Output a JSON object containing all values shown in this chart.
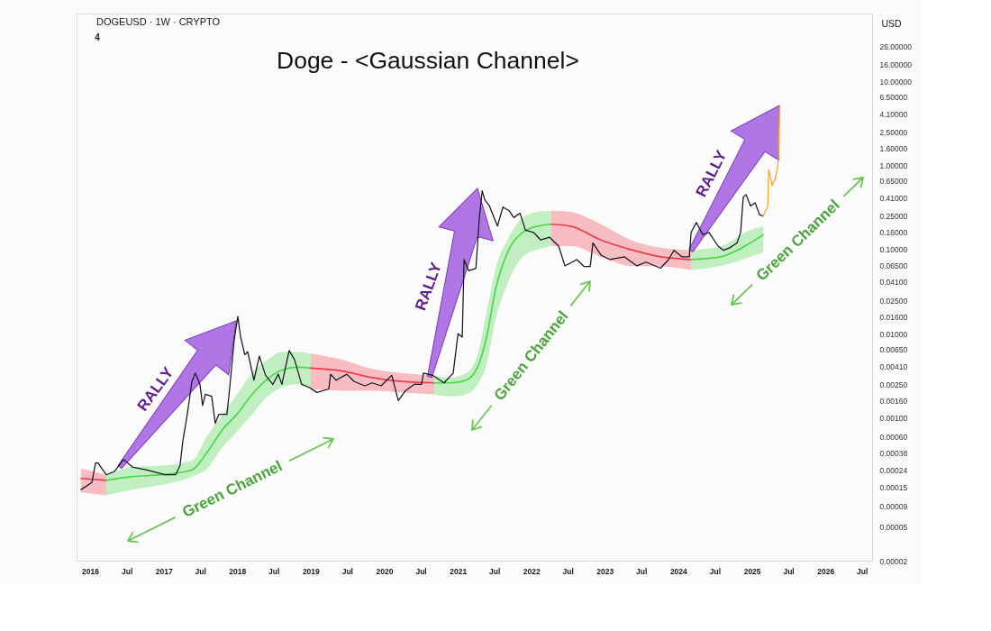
{
  "chart_data": {
    "type": "line",
    "title": "Doge - <Gaussian Channel>",
    "ylabel": "USD",
    "annotations": [
      "RALLY",
      "RALLY",
      "RALLY",
      "Green Channel",
      "Green Channel",
      "Green Channel",
      "DOGEUSD · 1W · CRYPTO",
      "4"
    ],
    "xlim": [
      "2015-10-26",
      "2026-08-21"
    ],
    "xticks": [
      {
        "value": "2016-01-01",
        "label": "2016"
      },
      {
        "value": "2016-07-01",
        "label": "Jul"
      },
      {
        "value": "2017-01-01",
        "label": "2017"
      },
      {
        "value": "2017-07-01",
        "label": "Jul"
      },
      {
        "value": "2018-01-01",
        "label": "2018"
      },
      {
        "value": "2018-07-01",
        "label": "Jul"
      },
      {
        "value": "2019-01-01",
        "label": "2019"
      },
      {
        "value": "2019-07-01",
        "label": "Jul"
      },
      {
        "value": "2020-01-01",
        "label": "2020"
      },
      {
        "value": "2020-07-01",
        "label": "Jul"
      },
      {
        "value": "2021-01-01",
        "label": "2021"
      },
      {
        "value": "2021-07-01",
        "label": "Jul"
      },
      {
        "value": "2022-01-01",
        "label": "2022"
      },
      {
        "value": "2022-07-01",
        "label": "Jul"
      },
      {
        "value": "2023-01-01",
        "label": "2023"
      },
      {
        "value": "2023-07-01",
        "label": "Jul"
      },
      {
        "value": "2024-01-01",
        "label": "2024"
      },
      {
        "value": "2024-07-01",
        "label": "Jul"
      },
      {
        "value": "2025-01-01",
        "label": "2025"
      },
      {
        "value": "2025-07-01",
        "label": "Jul"
      },
      {
        "value": "2026-01-01",
        "label": "2026"
      },
      {
        "value": "2026-07-01",
        "label": "Jul"
      }
    ],
    "ylim": [
      2e-05,
      64
    ],
    "yticks": [
      {
        "value": 2e-05,
        "label": "0.00002"
      },
      {
        "value": 5e-05,
        "label": "0.00005"
      },
      {
        "value": 9e-05,
        "label": "0.00009"
      },
      {
        "value": 0.00015,
        "label": "0.00015"
      },
      {
        "value": 0.00024,
        "label": "0.00024"
      },
      {
        "value": 0.00038,
        "label": "0.00038"
      },
      {
        "value": 0.0006,
        "label": "0.00060"
      },
      {
        "value": 0.001,
        "label": "0.00100"
      },
      {
        "value": 0.0016,
        "label": "0.00160"
      },
      {
        "value": 0.0025,
        "label": "0.00250"
      },
      {
        "value": 0.0041,
        "label": "0.00410"
      },
      {
        "value": 0.0065,
        "label": "0.00650"
      },
      {
        "value": 0.01,
        "label": "0.01000"
      },
      {
        "value": 0.016,
        "label": "0.01600"
      },
      {
        "value": 0.025,
        "label": "0.02500"
      },
      {
        "value": 0.041,
        "label": "0.04100"
      },
      {
        "value": 0.065,
        "label": "0.06500"
      },
      {
        "value": 0.1,
        "label": "0.10000"
      },
      {
        "value": 0.16,
        "label": "0.16000"
      },
      {
        "value": 0.25,
        "label": "0.25000"
      },
      {
        "value": 0.41,
        "label": "0.41000"
      },
      {
        "value": 0.65,
        "label": "0.65000"
      },
      {
        "value": 1,
        "label": "1.00000"
      },
      {
        "value": 1.6,
        "label": "1.60000"
      },
      {
        "value": 2.5,
        "label": "2.50000"
      },
      {
        "value": 4.1,
        "label": "4.10000"
      },
      {
        "value": 6.5,
        "label": "6.50000"
      },
      {
        "value": 10,
        "label": "10.00000"
      },
      {
        "value": 16,
        "label": "16.00000"
      },
      {
        "value": 26,
        "label": "26.00000"
      }
    ],
    "log": true,
    "grid": false,
    "series": [
      {
        "color": "#ef3b4c",
        "x": [
          "2015-11-17",
          "2016-03-22"
        ],
        "values": [
          0.00019,
          0.00018
        ],
        "lower": [
          0.00013,
          0.00012
        ],
        "upper": [
          0.00025,
          0.00021
        ]
      },
      {
        "color": "#4cd84c",
        "x": [
          "2016-03-22",
          "2016-07-29",
          "2016-12-24",
          "2017-05-21",
          "2017-08-05",
          "2017-10-21",
          "2017-12-31",
          "2018-03-16",
          "2018-06-01",
          "2018-08-11",
          "2018-10-27",
          "2019-01-01"
        ],
        "values": [
          0.00018,
          0.0002,
          0.00021,
          0.00024,
          0.00039,
          0.00073,
          0.0011,
          0.0019,
          0.0029,
          0.0037,
          0.004,
          0.0039
        ],
        "lower": [
          0.00012,
          0.00014,
          0.00016,
          0.0002,
          0.00025,
          0.00045,
          0.00068,
          0.0011,
          0.0018,
          0.0023,
          0.0025,
          0.0022
        ],
        "upper": [
          0.00021,
          0.00026,
          0.00027,
          0.00031,
          0.00061,
          0.0011,
          0.0019,
          0.0034,
          0.0049,
          0.0061,
          0.0061,
          0.0058
        ]
      },
      {
        "color": "#ef3b4c",
        "x": [
          "2019-01-01",
          "2019-06-07",
          "2019-11-02",
          "2020-04-02",
          "2020-09-06"
        ],
        "values": [
          0.0039,
          0.0036,
          0.003,
          0.0027,
          0.0026
        ],
        "lower": [
          0.0022,
          0.0021,
          0.0021,
          0.002,
          0.0019
        ],
        "upper": [
          0.0058,
          0.0049,
          0.0038,
          0.0034,
          0.0032
        ]
      },
      {
        "color": "#4cd84c",
        "x": [
          "2020-09-06",
          "2020-11-25",
          "2021-02-10",
          "2021-04-09",
          "2021-05-24",
          "2021-07-08",
          "2021-09-04",
          "2021-11-19",
          "2022-02-03",
          "2022-04-11"
        ],
        "values": [
          0.0026,
          0.0026,
          0.0028,
          0.004,
          0.0091,
          0.034,
          0.091,
          0.16,
          0.19,
          0.2
        ],
        "lower": [
          0.0019,
          0.0018,
          0.0019,
          0.0025,
          0.0043,
          0.015,
          0.039,
          0.082,
          0.1,
          0.11
        ],
        "upper": [
          0.0032,
          0.003,
          0.0034,
          0.0056,
          0.018,
          0.06,
          0.13,
          0.24,
          0.28,
          0.29
        ]
      },
      {
        "color": "#ef3b4c",
        "x": [
          "2022-04-11",
          "2022-07-14",
          "2022-12-13",
          "2023-05-10",
          "2023-10-05",
          "2024-03-05"
        ],
        "values": [
          0.2,
          0.19,
          0.13,
          0.1,
          0.082,
          0.076
        ],
        "lower": [
          0.11,
          0.11,
          0.082,
          0.064,
          0.063,
          0.057
        ],
        "upper": [
          0.29,
          0.28,
          0.2,
          0.13,
          0.105,
          0.098
        ]
      },
      {
        "color": "#4cd84c",
        "x": [
          "2024-03-05",
          "2024-07-30",
          "2024-12-25",
          "2025-02-26"
        ],
        "values": [
          0.076,
          0.082,
          0.12,
          0.15
        ],
        "lower": [
          0.057,
          0.064,
          0.082,
          0.093
        ],
        "upper": [
          0.098,
          0.11,
          0.17,
          0.19
        ]
      },
      {
        "color": "#131722",
        "x": [
          "2015-11-17",
          "2016-01-10",
          "2016-01-28",
          "2016-02-10",
          "2016-02-28",
          "2016-03-22",
          "2016-05-01",
          "2016-06-15",
          "2016-07-29",
          "2016-10-09",
          "2017-01-07",
          "2017-03-01",
          "2017-03-23",
          "2017-04-06",
          "2017-04-28",
          "2017-05-21",
          "2017-06-07",
          "2017-06-30",
          "2017-07-13",
          "2017-07-27",
          "2017-08-27",
          "2017-09-14",
          "2017-10-02",
          "2017-11-11",
          "2017-11-25",
          "2017-12-17",
          "2018-01-04",
          "2018-01-18",
          "2018-02-08",
          "2018-02-22",
          "2018-03-25",
          "2018-04-21",
          "2018-05-22",
          "2018-06-27",
          "2018-07-24",
          "2018-08-11",
          "2018-09-16",
          "2018-10-13",
          "2018-11-17",
          "2018-12-24",
          "2019-02-01",
          "2019-04-01",
          "2019-04-10",
          "2019-05-07",
          "2019-06-30",
          "2019-08-05",
          "2019-09-27",
          "2019-11-02",
          "2019-12-17",
          "2020-02-08",
          "2020-03-11",
          "2020-04-16",
          "2020-05-30",
          "2020-07-05",
          "2020-07-14",
          "2020-08-28",
          "2020-10-25",
          "2020-12-09",
          "2021-01-02",
          "2021-01-23",
          "2021-02-01",
          "2021-02-24",
          "2021-04-01",
          "2021-04-18",
          "2021-05-02",
          "2021-05-15",
          "2021-06-07",
          "2021-07-17",
          "2021-08-13",
          "2021-09-13",
          "2021-10-06",
          "2021-11-06",
          "2021-12-03",
          "2022-01-12",
          "2022-02-17",
          "2022-04-02",
          "2022-05-17",
          "2022-06-17",
          "2022-08-15",
          "2022-09-19",
          "2022-10-21",
          "2022-11-03",
          "2022-12-13",
          "2023-01-27",
          "2023-04-09",
          "2023-06-10",
          "2023-07-25",
          "2023-10-05",
          "2023-11-14",
          "2023-12-11",
          "2024-01-20",
          "2024-02-25",
          "2024-03-05",
          "2024-03-31",
          "2024-05-02",
          "2024-06-02",
          "2024-07-17",
          "2024-08-13",
          "2024-09-13",
          "2024-10-19",
          "2024-11-06",
          "2024-11-19",
          "2024-12-03",
          "2024-12-25",
          "2025-01-17",
          "2025-02-08",
          "2025-02-26"
        ],
        "values": [
          0.00014,
          0.00017,
          0.00029,
          0.00029,
          0.00025,
          0.00021,
          0.00023,
          0.00032,
          0.00026,
          0.00024,
          0.00021,
          0.00021,
          0.00027,
          0.00053,
          0.0011,
          0.0027,
          0.0034,
          0.0025,
          0.0014,
          0.0019,
          0.0018,
          0.00086,
          0.0011,
          0.0011,
          0.0023,
          0.0084,
          0.016,
          0.0091,
          0.0056,
          0.0061,
          0.0028,
          0.0054,
          0.0032,
          0.0025,
          0.0033,
          0.0025,
          0.0063,
          0.0049,
          0.0025,
          0.0023,
          0.002,
          0.0022,
          0.0033,
          0.0028,
          0.0033,
          0.0027,
          0.0024,
          0.0026,
          0.0024,
          0.0032,
          0.0016,
          0.0021,
          0.0025,
          0.0025,
          0.0034,
          0.0032,
          0.0026,
          0.0034,
          0.01,
          0.0091,
          0.076,
          0.056,
          0.06,
          0.24,
          0.5,
          0.39,
          0.33,
          0.19,
          0.32,
          0.29,
          0.24,
          0.27,
          0.17,
          0.16,
          0.13,
          0.14,
          0.11,
          0.064,
          0.076,
          0.063,
          0.063,
          0.12,
          0.086,
          0.076,
          0.082,
          0.064,
          0.071,
          0.06,
          0.076,
          0.098,
          0.082,
          0.082,
          0.16,
          0.21,
          0.15,
          0.16,
          0.11,
          0.098,
          0.105,
          0.12,
          0.16,
          0.42,
          0.45,
          0.33,
          0.36,
          0.26,
          0.25
        ]
      },
      {
        "color": "#f7a325",
        "x": [
          "2025-02-26",
          "2025-03-21",
          "2025-03-25",
          "2025-04-12",
          "2025-04-26",
          "2025-05-09",
          "2025-05-13",
          "2025-05-18"
        ],
        "values": [
          0.25,
          0.33,
          0.89,
          0.58,
          0.69,
          0.95,
          1.3,
          5.2
        ]
      }
    ]
  }
}
